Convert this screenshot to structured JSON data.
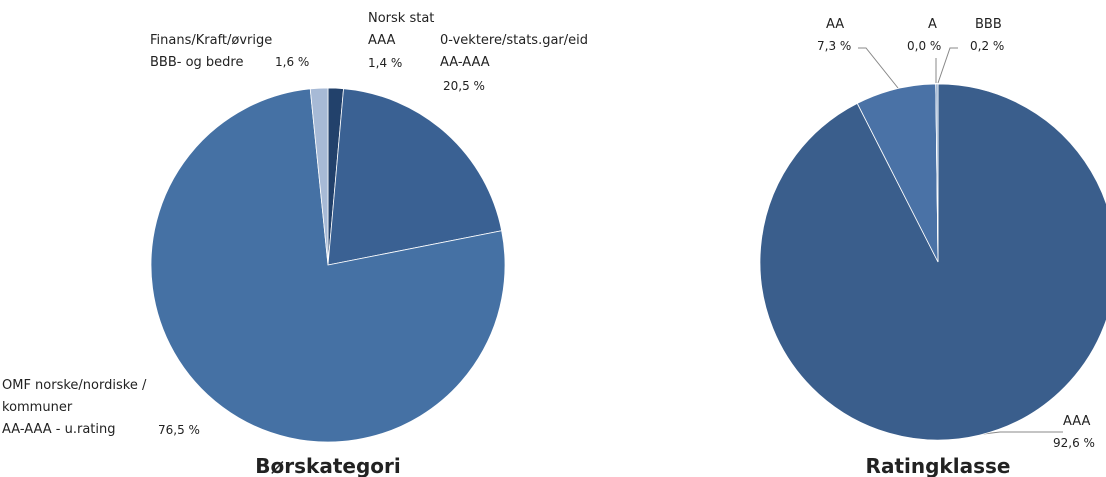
{
  "chart_data": [
    {
      "type": "pie",
      "title": "Børskategori",
      "categories": [
        "Norsk stat\nAAA",
        "0-vektere/stats.gar/eid\nAA-AAA",
        "OMF norske/nordiske  /\nkommuner\nAA-AAA - u.rating",
        "Finans/Kraft/øvrige\nBBB- og bedre"
      ],
      "values": [
        1.4,
        20.5,
        76.5,
        1.6
      ],
      "value_labels": [
        "1,4 %",
        "20,5 %",
        "76,5 %",
        "1,6 %"
      ],
      "colors": [
        "#22416b",
        "#3a6193",
        "#4571a4",
        "#a7bad6"
      ]
    },
    {
      "type": "pie",
      "title": "Ratingklasse",
      "categories": [
        "AAA",
        "AA",
        "A",
        "BBB"
      ],
      "values": [
        92.6,
        7.3,
        0.0,
        0.2
      ],
      "value_labels": [
        "92,6 %",
        "7,3 %",
        "0,0 %",
        "0,2 %"
      ],
      "colors": [
        "#3a5e8c",
        "#4a72a6",
        "#3f6596",
        "#8fa9cc"
      ]
    }
  ]
}
